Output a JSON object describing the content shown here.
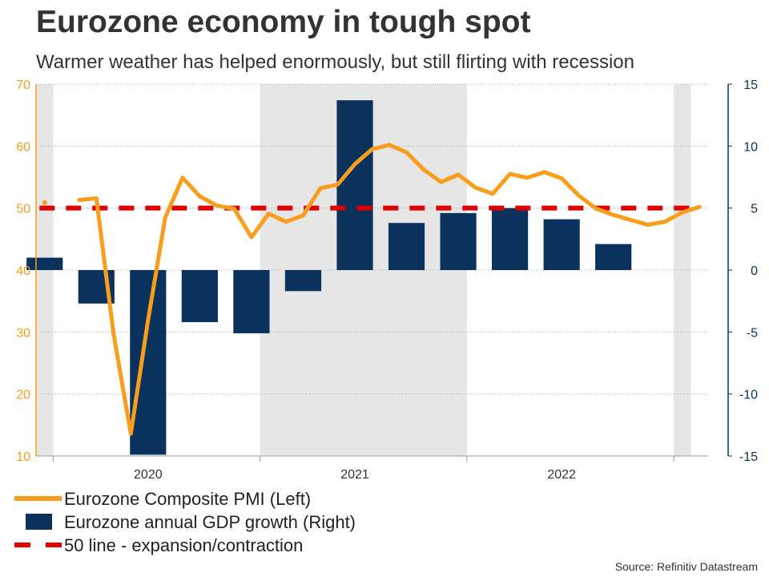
{
  "title": "Eurozone economy in tough spot",
  "subtitle": "Warmer weather has helped enormously, but still flirting with recession",
  "source": "Source: Refinitiv Datastream",
  "colors": {
    "pmi": "#f99d1c",
    "gdp": "#0a325c",
    "fifty_line": "#e00000",
    "shade": "#e6e6e6",
    "left_axis": "#f99d1c",
    "right_axis": "#0a325c"
  },
  "legend": [
    {
      "key": "line",
      "label": "Eurozone Composite PMI (Left)"
    },
    {
      "key": "bar",
      "label": "Eurozone annual GDP growth (Right)"
    },
    {
      "key": "dash",
      "label": "50 line - expansion/contraction"
    }
  ],
  "chart_data": {
    "type": "bar+line",
    "x_range": [
      "2019-12",
      "2023-01"
    ],
    "x_ticks": [
      {
        "label": "2020",
        "pos": 6.5
      },
      {
        "label": "2021",
        "pos": 18.5
      },
      {
        "label": "2022",
        "pos": 30.5
      }
    ],
    "y_left": {
      "label": "",
      "range": [
        10,
        70
      ],
      "ticks": [
        "10",
        "20",
        "30",
        "40",
        "50",
        "60",
        "70"
      ]
    },
    "y_right": {
      "label": "",
      "range": [
        -15,
        15
      ],
      "ticks": [
        "-15",
        "-10",
        "-5",
        "0",
        "5",
        "10",
        "15"
      ]
    },
    "shaded_periods": [
      [
        0,
        1
      ],
      [
        13,
        25
      ],
      [
        37,
        38
      ]
    ],
    "series": [
      {
        "name": "Eurozone Composite PMI (Left)",
        "axis": "left",
        "type": "line",
        "points": [
          {
            "x": 0.5,
            "y": 50.9
          },
          {
            "x": 2.5,
            "y": 51.3
          },
          {
            "x": 3.5,
            "y": 51.6
          },
          {
            "x": 4.5,
            "y": 29.7
          },
          {
            "x": 5.5,
            "y": 13.6
          },
          {
            "x": 6.5,
            "y": 31.9
          },
          {
            "x": 7.5,
            "y": 48.5
          },
          {
            "x": 8.5,
            "y": 54.9
          },
          {
            "x": 9.5,
            "y": 51.9
          },
          {
            "x": 10.5,
            "y": 50.4
          },
          {
            "x": 11.5,
            "y": 49.9
          },
          {
            "x": 12.5,
            "y": 45.3
          },
          {
            "x": 13.5,
            "y": 49.1
          },
          {
            "x": 14.5,
            "y": 47.8
          },
          {
            "x": 15.5,
            "y": 48.8
          },
          {
            "x": 16.5,
            "y": 53.2
          },
          {
            "x": 17.5,
            "y": 53.8
          },
          {
            "x": 18.5,
            "y": 57.1
          },
          {
            "x": 19.5,
            "y": 59.5
          },
          {
            "x": 20.5,
            "y": 60.2
          },
          {
            "x": 21.5,
            "y": 59.0
          },
          {
            "x": 22.5,
            "y": 56.2
          },
          {
            "x": 23.5,
            "y": 54.2
          },
          {
            "x": 24.5,
            "y": 55.4
          },
          {
            "x": 25.5,
            "y": 53.3
          },
          {
            "x": 26.5,
            "y": 52.3
          },
          {
            "x": 27.5,
            "y": 55.5
          },
          {
            "x": 28.5,
            "y": 54.9
          },
          {
            "x": 29.5,
            "y": 55.8
          },
          {
            "x": 30.5,
            "y": 54.8
          },
          {
            "x": 31.5,
            "y": 52.0
          },
          {
            "x": 32.5,
            "y": 49.9
          },
          {
            "x": 33.5,
            "y": 48.9
          },
          {
            "x": 34.5,
            "y": 48.1
          },
          {
            "x": 35.5,
            "y": 47.3
          },
          {
            "x": 36.5,
            "y": 47.8
          },
          {
            "x": 37.5,
            "y": 49.3
          },
          {
            "x": 38.5,
            "y": 50.2
          }
        ]
      },
      {
        "name": "Eurozone annual GDP growth (Right)",
        "axis": "right",
        "type": "bar",
        "bars": [
          {
            "x": 0.5,
            "value": 1.0
          },
          {
            "x": 3.5,
            "value": -2.7
          },
          {
            "x": 6.5,
            "value": -14.9
          },
          {
            "x": 9.5,
            "value": -4.2
          },
          {
            "x": 12.5,
            "value": -5.1
          },
          {
            "x": 15.5,
            "value": -1.7
          },
          {
            "x": 18.5,
            "value": 13.7
          },
          {
            "x": 21.5,
            "value": 3.8
          },
          {
            "x": 24.5,
            "value": 4.6
          },
          {
            "x": 27.5,
            "value": 5.0
          },
          {
            "x": 30.5,
            "value": 4.1
          },
          {
            "x": 33.5,
            "value": 2.1
          }
        ]
      },
      {
        "name": "50 line - expansion/contraction",
        "axis": "left",
        "type": "reference",
        "value": 50
      }
    ]
  }
}
